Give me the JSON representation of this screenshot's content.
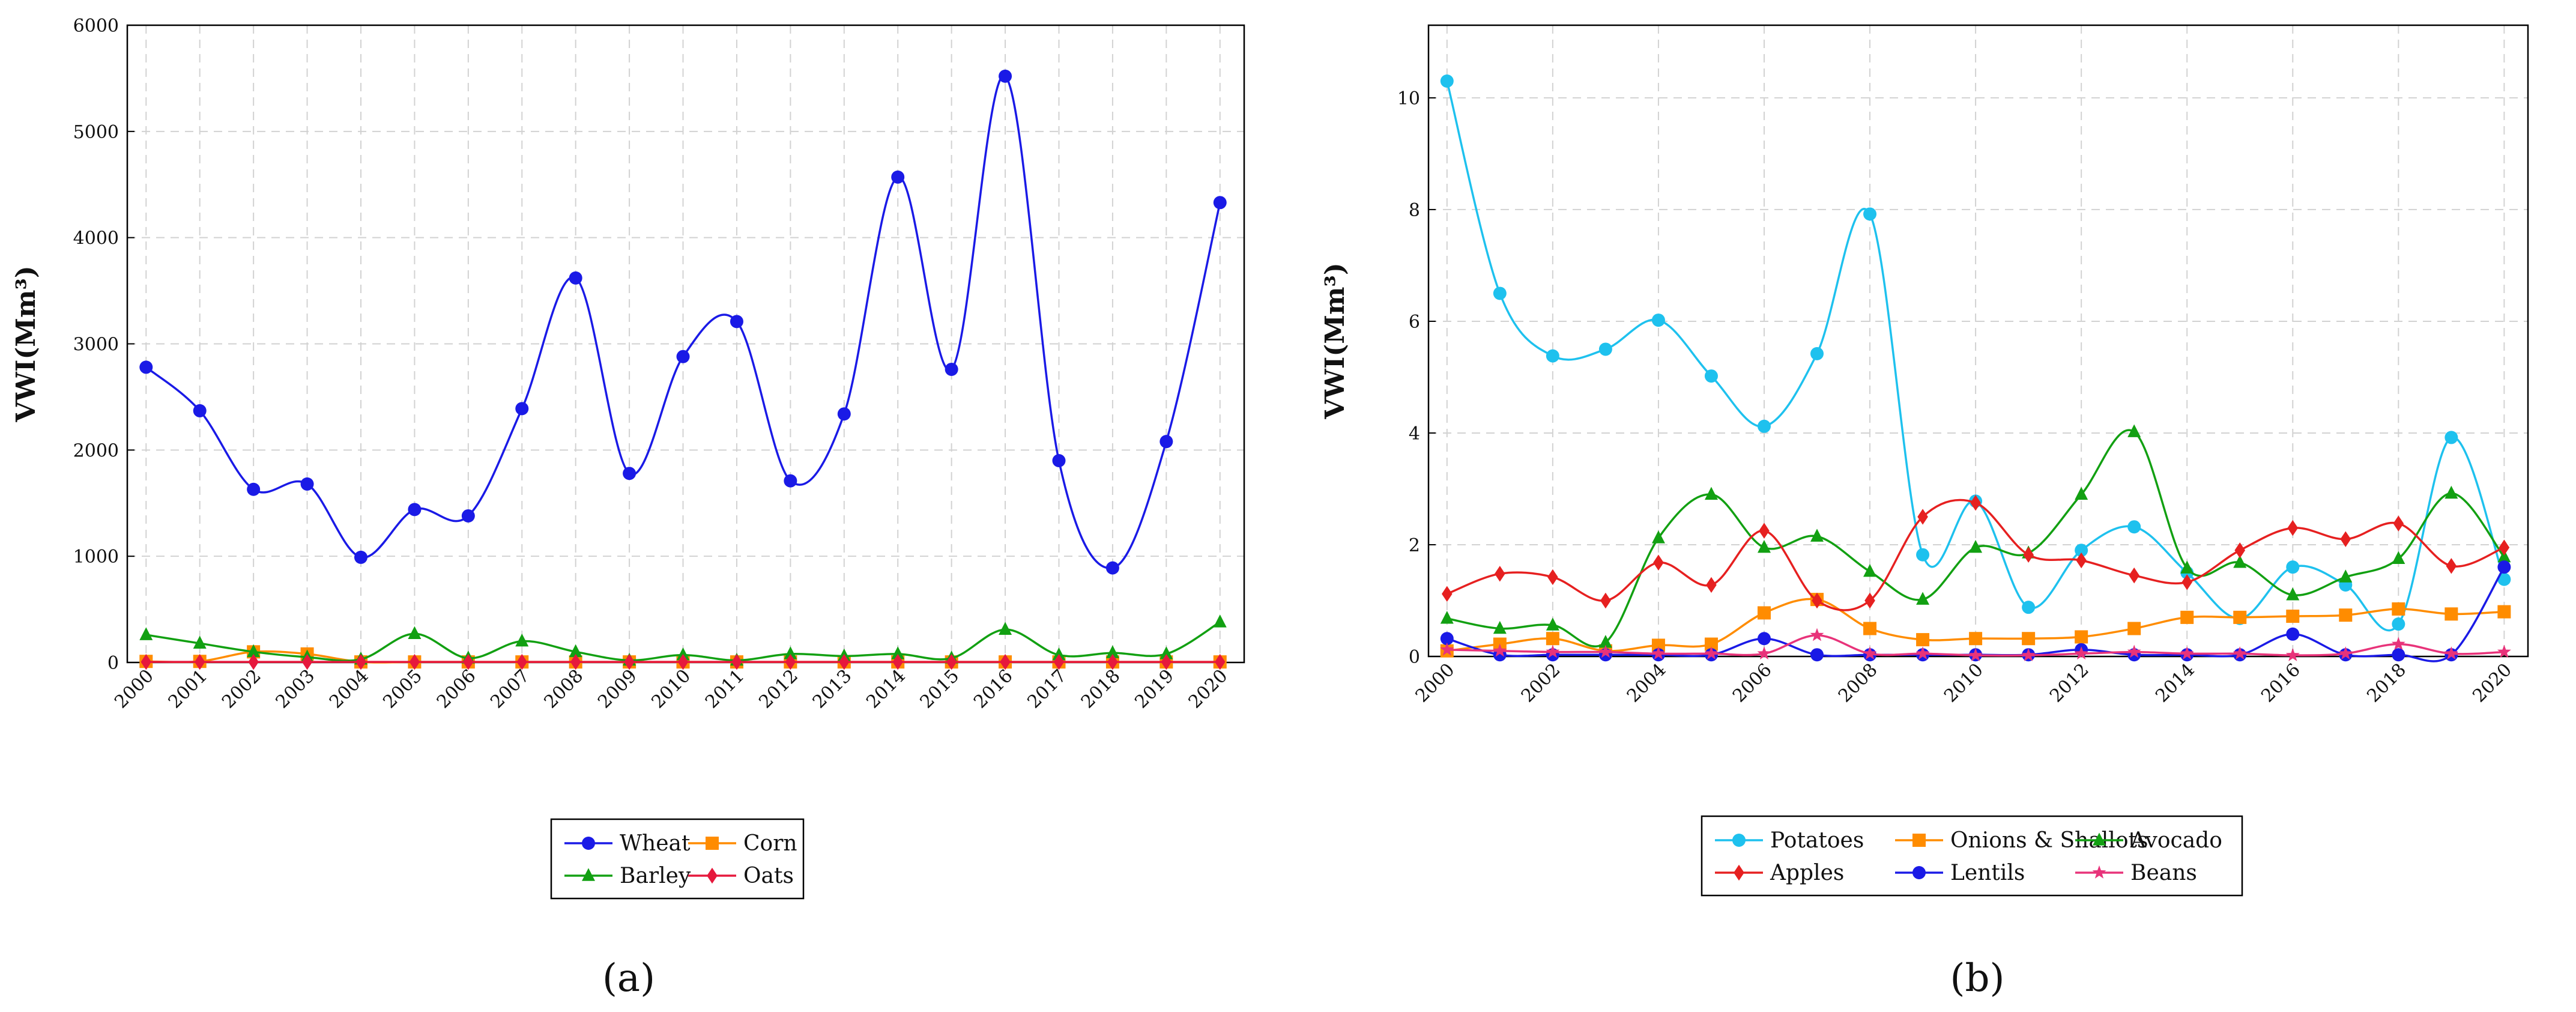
{
  "figure": {
    "panel_labels": [
      "(a)",
      "(b)"
    ]
  },
  "chart_data": [
    {
      "type": "line",
      "panel": "a",
      "title": "",
      "xlabel": "",
      "ylabel": "VWI(Mm³)",
      "ylim": [
        0,
        6000
      ],
      "yticks": [
        0,
        1000,
        2000,
        3000,
        4000,
        5000,
        6000
      ],
      "x": [
        2000,
        2001,
        2002,
        2003,
        2004,
        2005,
        2006,
        2007,
        2008,
        2009,
        2010,
        2011,
        2012,
        2013,
        2014,
        2015,
        2016,
        2017,
        2018,
        2019,
        2020
      ],
      "xticks": [
        2000,
        2001,
        2002,
        2003,
        2004,
        2005,
        2006,
        2007,
        2008,
        2009,
        2010,
        2011,
        2012,
        2013,
        2014,
        2015,
        2016,
        2017,
        2018,
        2019,
        2020
      ],
      "grid": true,
      "legend_position": "bottom",
      "series": [
        {
          "name": "Wheat",
          "color": "#1a1ae6",
          "marker": "circle",
          "values": [
            2780,
            2370,
            1630,
            1680,
            990,
            1440,
            1380,
            2390,
            3620,
            1780,
            2880,
            3210,
            1710,
            2340,
            4570,
            2760,
            5520,
            1900,
            890,
            2080,
            4330
          ]
        },
        {
          "name": "Corn",
          "color": "#ff8c00",
          "marker": "square",
          "values": [
            10,
            10,
            100,
            80,
            5,
            5,
            5,
            5,
            5,
            5,
            5,
            5,
            5,
            5,
            5,
            5,
            5,
            5,
            5,
            5,
            5
          ]
        },
        {
          "name": "Barley",
          "color": "#12a012",
          "marker": "triangle",
          "values": [
            260,
            180,
            100,
            50,
            30,
            270,
            40,
            200,
            100,
            20,
            70,
            20,
            80,
            60,
            80,
            40,
            310,
            70,
            90,
            80,
            380
          ]
        },
        {
          "name": "Oats",
          "color": "#e6183c",
          "marker": "diamond",
          "values": [
            5,
            5,
            5,
            5,
            5,
            5,
            5,
            5,
            5,
            5,
            5,
            5,
            5,
            5,
            5,
            5,
            5,
            5,
            5,
            5,
            5
          ]
        }
      ]
    },
    {
      "type": "line",
      "panel": "b",
      "title": "",
      "xlabel": "",
      "ylabel": "VWI(Mm³)",
      "ylim": [
        0,
        11.3
      ],
      "yticks": [
        0,
        2,
        4,
        6,
        8,
        10
      ],
      "x": [
        2000,
        2001,
        2002,
        2003,
        2004,
        2005,
        2006,
        2007,
        2008,
        2009,
        2010,
        2011,
        2012,
        2013,
        2014,
        2015,
        2016,
        2017,
        2018,
        2019,
        2020
      ],
      "xticks": [
        2000,
        2002,
        2004,
        2006,
        2008,
        2010,
        2012,
        2014,
        2016,
        2018,
        2020
      ],
      "grid": true,
      "legend_position": "bottom",
      "series": [
        {
          "name": "Potatoes",
          "color": "#1ec1ee",
          "marker": "circle",
          "values": [
            10.3,
            6.5,
            5.38,
            5.5,
            6.02,
            5.02,
            4.12,
            5.42,
            7.92,
            1.82,
            2.78,
            0.88,
            1.9,
            2.32,
            1.5,
            0.68,
            1.6,
            1.28,
            0.58,
            3.92,
            1.38
          ]
        },
        {
          "name": "Onions & Shallots",
          "color": "#ff8c00",
          "marker": "square",
          "values": [
            0.1,
            0.22,
            0.32,
            0.1,
            0.2,
            0.22,
            0.78,
            1.02,
            0.5,
            0.3,
            0.32,
            0.32,
            0.35,
            0.5,
            0.7,
            0.7,
            0.72,
            0.74,
            0.85,
            0.76,
            0.8
          ]
        },
        {
          "name": "Avocado",
          "color": "#12a012",
          "marker": "triangle",
          "values": [
            0.68,
            0.5,
            0.56,
            0.25,
            2.12,
            2.9,
            1.95,
            2.15,
            1.52,
            1.02,
            1.95,
            1.85,
            2.9,
            4.02,
            1.58,
            1.68,
            1.1,
            1.42,
            1.75,
            2.92,
            1.78
          ]
        },
        {
          "name": "Apples",
          "color": "#e62020",
          "marker": "diamond",
          "values": [
            1.12,
            1.48,
            1.42,
            1.0,
            1.68,
            1.28,
            2.25,
            1.0,
            1.0,
            2.5,
            2.75,
            1.82,
            1.72,
            1.45,
            1.33,
            1.9,
            2.3,
            2.1,
            2.38,
            1.62,
            1.95
          ]
        },
        {
          "name": "Lentils",
          "color": "#1a1ae6",
          "marker": "circle",
          "values": [
            0.32,
            0.03,
            0.03,
            0.03,
            0.03,
            0.03,
            0.32,
            0.03,
            0.03,
            0.03,
            0.03,
            0.03,
            0.12,
            0.03,
            0.03,
            0.03,
            0.4,
            0.03,
            0.03,
            0.03,
            1.6
          ]
        },
        {
          "name": "Beans",
          "color": "#e8337a",
          "marker": "star",
          "values": [
            0.12,
            0.1,
            0.08,
            0.08,
            0.05,
            0.05,
            0.05,
            0.38,
            0.05,
            0.05,
            0.02,
            0.02,
            0.05,
            0.08,
            0.05,
            0.05,
            0.02,
            0.05,
            0.22,
            0.05,
            0.08
          ]
        }
      ]
    }
  ]
}
